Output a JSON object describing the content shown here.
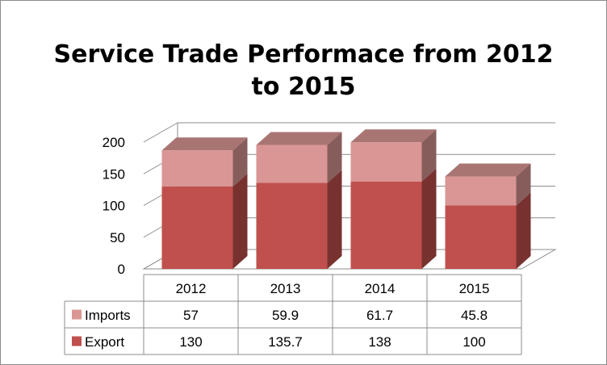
{
  "chart_data": {
    "type": "bar",
    "stacked": true,
    "three_d": true,
    "title_lines": [
      "Service Trade Performace from 2012",
      "to 2015"
    ],
    "categories": [
      "2012",
      "2013",
      "2014",
      "2015"
    ],
    "series": [
      {
        "name": "Export",
        "values": [
          130,
          135.7,
          138,
          100
        ],
        "color": "#c0504d"
      },
      {
        "name": "Imports",
        "values": [
          57,
          59.9,
          61.7,
          45.8
        ],
        "color": "#d99694"
      }
    ],
    "table_labels": {
      "Export": [
        "130",
        "135.7",
        "138",
        "100"
      ],
      "Imports": [
        "57",
        "59.9",
        "61.7",
        "45.8"
      ]
    },
    "ylim": [
      0,
      200
    ],
    "yticks": [
      0,
      50,
      100,
      150,
      200
    ],
    "grid": true,
    "legend": "data-table-left"
  }
}
